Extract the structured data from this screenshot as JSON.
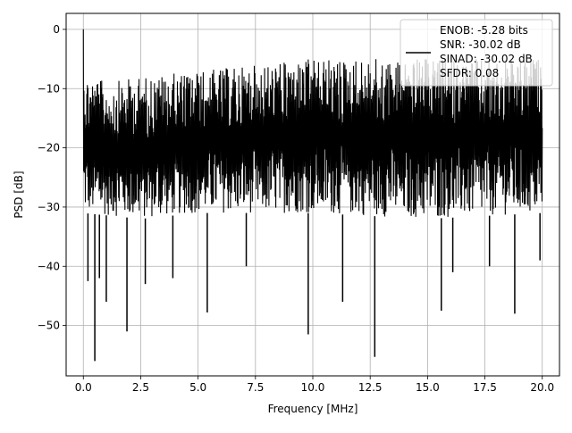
{
  "chart_data": {
    "type": "line",
    "xlabel": "Frequency [MHz]",
    "ylabel": "PSD [dB]",
    "xlim": [
      -0.75,
      20.75
    ],
    "ylim": [
      -58.5,
      2.7
    ],
    "xticks": [
      0.0,
      2.5,
      5.0,
      7.5,
      10.0,
      12.5,
      15.0,
      17.5,
      20.0
    ],
    "xtick_labels": [
      "0.0",
      "2.5",
      "5.0",
      "7.5",
      "10.0",
      "12.5",
      "15.0",
      "17.5",
      "20.0"
    ],
    "yticks": [
      0,
      -10,
      -20,
      -30,
      -40,
      -50
    ],
    "ytick_labels": [
      "0",
      "−10",
      "−20",
      "−30",
      "−40",
      "−50"
    ],
    "grid": true,
    "legend_position": "top-right",
    "series": [
      {
        "color": "#000000",
        "description": "dense noise-like PSD trace, fluctuating roughly between -34 and -3 dB with isolated deep dips",
        "x_range": [
          0,
          20
        ],
        "peak": {
          "x": 0.0,
          "y": 0.0
        },
        "envelope_upper": [
          [
            0.0,
            -7
          ],
          [
            1.0,
            -9
          ],
          [
            2.5,
            -8
          ],
          [
            5.0,
            -7
          ],
          [
            7.5,
            -6
          ],
          [
            10.0,
            -5
          ],
          [
            12.5,
            -5
          ],
          [
            15.0,
            -5
          ],
          [
            17.5,
            -5
          ],
          [
            20.0,
            -5
          ]
        ],
        "envelope_lower": [
          [
            0.0,
            -31
          ],
          [
            2.5,
            -32
          ],
          [
            5.0,
            -31
          ],
          [
            10.0,
            -31
          ],
          [
            15.0,
            -32
          ],
          [
            20.0,
            -31
          ]
        ],
        "dips": [
          {
            "x": 0.2,
            "y": -42.5
          },
          {
            "x": 0.5,
            "y": -56.0
          },
          {
            "x": 0.7,
            "y": -42.0
          },
          {
            "x": 1.0,
            "y": -46.0
          },
          {
            "x": 1.9,
            "y": -51.0
          },
          {
            "x": 2.7,
            "y": -43.0
          },
          {
            "x": 3.9,
            "y": -42.0
          },
          {
            "x": 5.4,
            "y": -47.8
          },
          {
            "x": 7.1,
            "y": -40.0
          },
          {
            "x": 9.8,
            "y": -51.5
          },
          {
            "x": 11.3,
            "y": -46.0
          },
          {
            "x": 12.7,
            "y": -55.3
          },
          {
            "x": 15.6,
            "y": -47.5
          },
          {
            "x": 16.1,
            "y": -41.0
          },
          {
            "x": 17.7,
            "y": -40.0
          },
          {
            "x": 18.8,
            "y": -48.0
          },
          {
            "x": 19.9,
            "y": -39.0
          }
        ]
      }
    ],
    "legend": {
      "lines": [
        "ENOB: -5.28 bits",
        "SNR: -30.02 dB",
        "SINAD: -30.02 dB",
        "SFDR: 0.08"
      ]
    }
  }
}
